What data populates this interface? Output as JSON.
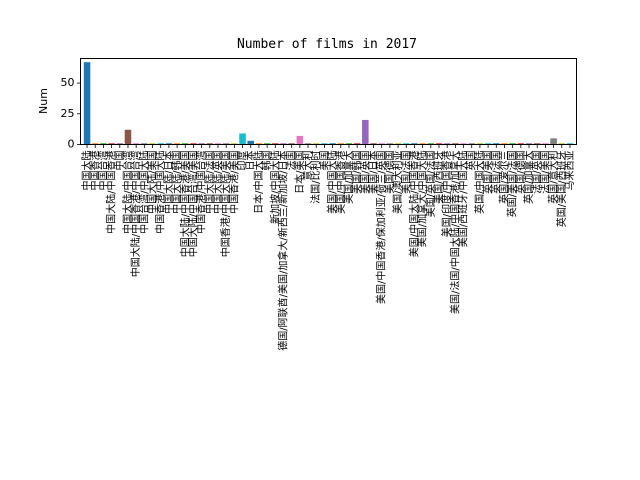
{
  "chart_data": {
    "type": "bar",
    "title": "Number of films in 2017",
    "xlabel": "",
    "ylabel": "Num",
    "ylim": [
      0,
      70
    ],
    "yticks": [
      0,
      25,
      50
    ],
    "grid": false,
    "categories": [
      "中国大陆",
      "中国香港",
      "中国台湾",
      "中国大陆/中国香港",
      "中国",
      "中国大陆/中国台湾",
      "中国大陆/中国香港/中国台湾",
      "中国台湾/中国大陆",
      "中国大陆/美国",
      "中国香港/中国大陆",
      "中国大陆/日本",
      "中国大陆/韩国",
      "中国大陆/中国香港/美国",
      "中国大陆/中国台湾/美国",
      "中国香港/中国台湾",
      "中国大陆/法国",
      "中国大陆/英国",
      "中国香港/中国大陆/美国",
      "中国香港/美国",
      "印度",
      "日本",
      "日本/中国大陆",
      "韩国",
      "新加坡/中国大陆",
      "德国/阿联酋/美国/加拿大/新西兰/新加坡/日本",
      "法国",
      "日本/美国",
      "意大利",
      "法国/比利时",
      "美国",
      "美国/中国大陆",
      "美国/中国香港",
      "美国/加拿大",
      "美国/韩国",
      "美国/英国",
      "美国/日本",
      "美国/中国香港/保加利亚/荷兰/英国",
      "美国/德国",
      "美国/澳大利亚",
      "美国/法国",
      "美国/中国大陆/中国香港",
      "美国/加拿大/中国大陆",
      "美国/英国/法国",
      "美国/西班牙",
      "美国/印度/中国香港",
      "美国/法国/中国大陆/中国香港/加拿大",
      "美国/西班牙/中国大陆",
      "英国",
      "英国/中国大陆",
      "英国/美国",
      "英国/法国",
      "英国/爱尔兰",
      "英国/美国/法国",
      "英国/德国",
      "英国/加拿大",
      "法国/英国",
      "法国/美国",
      "英国/意大利",
      "英国/美国/西班牙",
      "马来西亚"
    ],
    "values": [
      67,
      1,
      1,
      1,
      1,
      12,
      1,
      1,
      1,
      1,
      1,
      1,
      1,
      1,
      1,
      1,
      1,
      1,
      1,
      9,
      3,
      1,
      1,
      1,
      1,
      1,
      7,
      1,
      1,
      1,
      1,
      1,
      1,
      1,
      20,
      1,
      1,
      1,
      1,
      1,
      1,
      1,
      1,
      1,
      1,
      1,
      1,
      1,
      1,
      1,
      1,
      1,
      1,
      1,
      1,
      1,
      1,
      5,
      1,
      1
    ],
    "colors": [
      "#1f77b4",
      "#ff7f0e",
      "#2ca02c",
      "#d62728",
      "#9467bd",
      "#8c564b",
      "#e377c2",
      "#7f7f7f",
      "#bcbd22",
      "#17becf"
    ]
  }
}
